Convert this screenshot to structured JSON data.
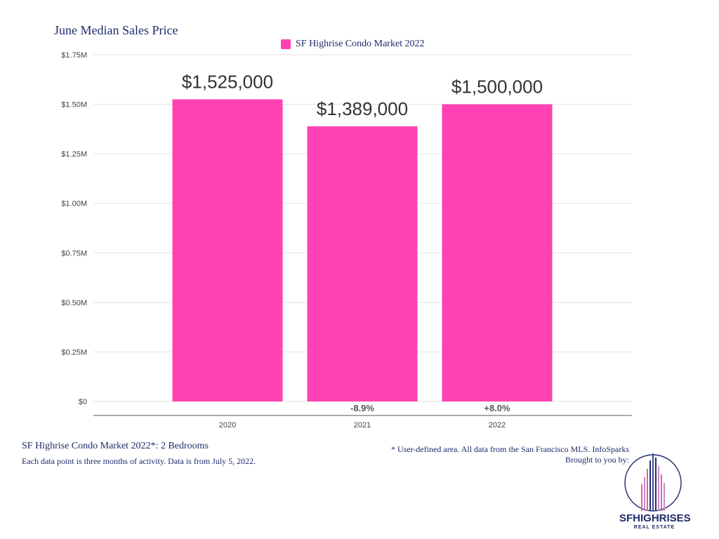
{
  "chart_data": {
    "type": "bar",
    "title": "June Median Sales Price",
    "categories": [
      "2020",
      "2021",
      "2022"
    ],
    "series": [
      {
        "name": "SF Highrise Condo Market 2022",
        "values": [
          1525000,
          1389000,
          1500000
        ]
      }
    ],
    "value_labels": [
      "$1,525,000",
      "$1,389,000",
      "$1,500,000"
    ],
    "change_labels": [
      "",
      "-8.9%",
      "+8.0%"
    ],
    "y_ticks": [
      {
        "value": 0,
        "label": "$0"
      },
      {
        "value": 250000,
        "label": "$0.25M"
      },
      {
        "value": 500000,
        "label": "$0.50M"
      },
      {
        "value": 750000,
        "label": "$0.75M"
      },
      {
        "value": 1000000,
        "label": "$1.00M"
      },
      {
        "value": 1250000,
        "label": "$1.25M"
      },
      {
        "value": 1500000,
        "label": "$1.50M"
      },
      {
        "value": 1750000,
        "label": "$1.75M"
      }
    ],
    "ylim": [
      0,
      1750000
    ],
    "grid": true,
    "legend_position": "top-center",
    "bar_color": "#ff42b3"
  },
  "footer": {
    "subtitle": "SF Highrise Condo Market 2022*: 2 Bedrooms",
    "note": "Each data point is three months of activity. Data is from July 5, 2022.",
    "source": "* User-defined area. All data from the San Francisco MLS. InfoSparks",
    "brought_by": "Brought to you by:"
  },
  "logo": {
    "brand": "SFHIGHRISES",
    "tagline": "REAL ESTATE"
  }
}
